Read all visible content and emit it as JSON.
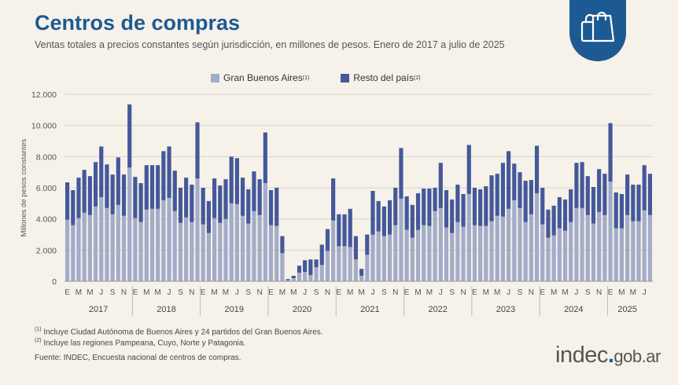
{
  "header": {
    "title": "Centros de compras",
    "subtitle": "Ventas totales a precios constantes según jurisdicción, en millones de pesos. Enero de 2017 a julio de 2025"
  },
  "colors": {
    "gba": "#a3acc9",
    "resto": "#44589a",
    "accent": "#1d5a94"
  },
  "legend": {
    "gba": "Gran Buenos Aires",
    "gba_note": "(1)",
    "resto": "Resto del país",
    "resto_note": "(2)"
  },
  "icon": "shopping-bags-icon",
  "footnotes": {
    "n1_mark": "(1)",
    "n1": "Incluye Ciudad Autónoma de Buenos Aires y 24 partidos del Gran Buenos Aires.",
    "n2_mark": "(2)",
    "n2": "Incluye las regiones Pampeana, Cuyo, Norte y Patagonia.",
    "source": "Fuente: INDEC, Encuesta nacional de centros de compras."
  },
  "logo": {
    "main": "indec",
    "dot": ".",
    "rest": "gob.ar"
  },
  "chart_data": {
    "type": "bar",
    "stacked": true,
    "ylabel": "Millones de pesos constantes",
    "ylim": [
      0,
      12000
    ],
    "yticks": [
      "0",
      "2.000",
      "4.000",
      "6.000",
      "8.000",
      "10.000",
      "12.000"
    ],
    "ytick_values": [
      0,
      2000,
      4000,
      6000,
      8000,
      10000,
      12000
    ],
    "grid": true,
    "legend_position": "top",
    "month_letters": [
      "E",
      "M",
      "M",
      "J",
      "S",
      "N"
    ],
    "years": [
      {
        "label": "2017",
        "months": 12
      },
      {
        "label": "2018",
        "months": 12
      },
      {
        "label": "2019",
        "months": 12
      },
      {
        "label": "2020",
        "months": 12
      },
      {
        "label": "2021",
        "months": 12
      },
      {
        "label": "2022",
        "months": 12
      },
      {
        "label": "2023",
        "months": 12
      },
      {
        "label": "2024",
        "months": 12
      },
      {
        "label": "2025",
        "months": 7
      }
    ],
    "series": [
      {
        "name": "Gran Buenos Aires",
        "values": [
          3950,
          3600,
          4050,
          4400,
          4250,
          4800,
          5400,
          4700,
          4300,
          4900,
          4200,
          7300,
          4050,
          3800,
          4600,
          4650,
          4650,
          5200,
          5350,
          4500,
          3750,
          4100,
          3800,
          6600,
          3650,
          3100,
          4050,
          3750,
          4000,
          5000,
          4950,
          4200,
          3700,
          4500,
          4250,
          6300,
          3600,
          3550,
          1800,
          60,
          200,
          550,
          600,
          400,
          900,
          1050,
          1950,
          3900,
          2250,
          2250,
          2200,
          1400,
          350,
          1700,
          3000,
          3200,
          2900,
          3000,
          3600,
          5300,
          3300,
          2800,
          3300,
          3600,
          3550,
          4500,
          4700,
          3450,
          3100,
          3800,
          3500,
          5600,
          3600,
          3550,
          3550,
          3850,
          4200,
          4150,
          4650,
          5200,
          4700,
          3800,
          4300,
          5650,
          3650,
          2800,
          2950,
          3400,
          3250,
          3800,
          4700,
          4700,
          4250,
          3700,
          4450,
          4250,
          6400,
          3400,
          3400,
          4250,
          3850,
          3850,
          4550,
          4250
        ]
      },
      {
        "name": "Resto del país",
        "values": [
          2400,
          2250,
          2600,
          2750,
          2500,
          2850,
          3250,
          2800,
          2550,
          3050,
          2650,
          4050,
          2650,
          2500,
          2850,
          2800,
          2800,
          3150,
          3300,
          2600,
          2250,
          2550,
          2400,
          3600,
          2350,
          2050,
          2550,
          2400,
          2550,
          3000,
          2950,
          2450,
          2200,
          2550,
          2300,
          3250,
          2250,
          2450,
          1100,
          80,
          150,
          450,
          750,
          1000,
          500,
          1300,
          1400,
          2700,
          2050,
          2050,
          2450,
          1500,
          450,
          1300,
          2800,
          1950,
          1900,
          2200,
          2400,
          3250,
          2150,
          2100,
          2350,
          2350,
          2400,
          1500,
          2900,
          2400,
          2150,
          2400,
          2100,
          3150,
          2400,
          2350,
          2550,
          2950,
          2700,
          3450,
          3700,
          2350,
          2300,
          2650,
          2200,
          3050,
          2350,
          1800,
          1900,
          2000,
          2000,
          2100,
          2900,
          2950,
          2500,
          2350,
          2750,
          2650,
          3750,
          2300,
          2200,
          2600,
          2350,
          2350,
          2900,
          2650
        ]
      }
    ]
  }
}
